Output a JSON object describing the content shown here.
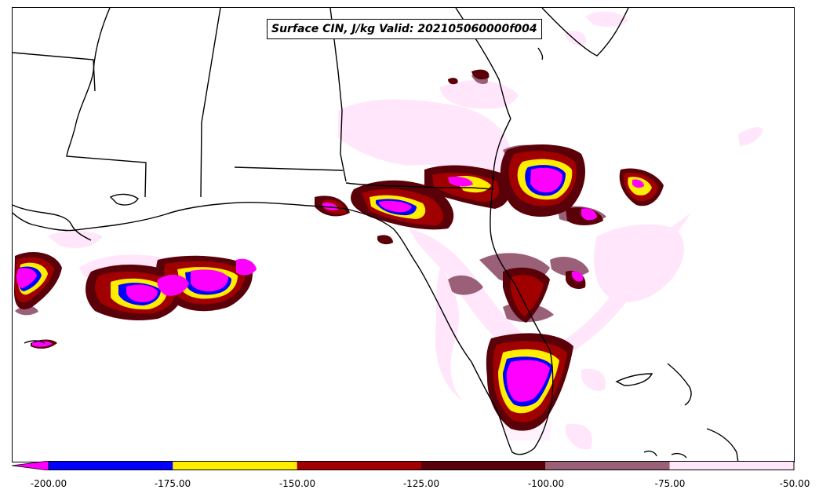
{
  "map": {
    "title": "Surface CIN, J/kg Valid: 202105060000f004"
  },
  "colorbar": {
    "extend_color": "#ff00ff",
    "segments": [
      {
        "from": -200,
        "to": -175,
        "color": "#0000ff"
      },
      {
        "from": -175,
        "to": -150,
        "color": "#ffee00"
      },
      {
        "from": -150,
        "to": -125,
        "color": "#a00000"
      },
      {
        "from": -125,
        "to": -100,
        "color": "#5a0008"
      },
      {
        "from": -100,
        "to": -75,
        "color": "#9a6078"
      },
      {
        "from": -75,
        "to": -50,
        "color": "#ffe6fb"
      }
    ],
    "tick_labels": [
      "-200.00",
      "-175.00",
      "-150.00",
      "-125.00",
      "-100.00",
      "-75.00",
      "-50.00"
    ],
    "range": [
      -200,
      -50
    ]
  },
  "palette": {
    "magenta": "#ff00ff",
    "blue": "#0000ff",
    "yellow": "#ffee00",
    "red": "#a00000",
    "darkred": "#5a0008",
    "mauve": "#9a6078",
    "pink": "#ffe6fb"
  }
}
